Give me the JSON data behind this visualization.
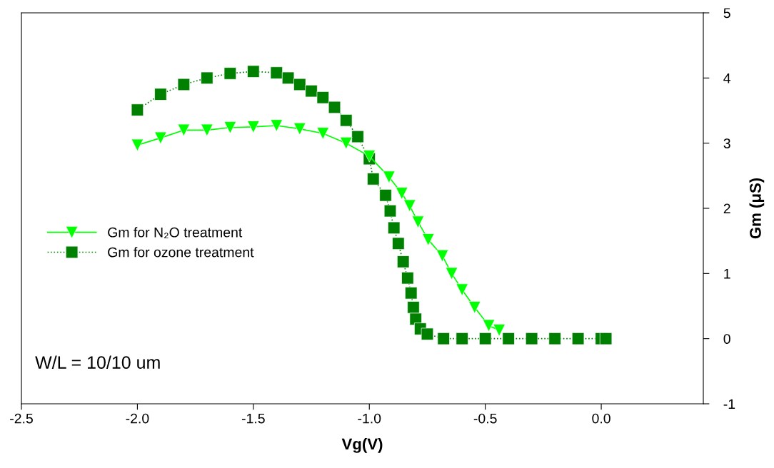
{
  "chart_data": {
    "type": "line",
    "xlabel": "Vg(V)",
    "ylabel": "Gm (μS)",
    "xlim": [
      -2.5,
      0.44
    ],
    "ylim": [
      -1,
      5
    ],
    "xticks": [
      {
        "value": -2.5,
        "label": "-2.5"
      },
      {
        "value": -2.0,
        "label": "-2.0"
      },
      {
        "value": -1.5,
        "label": "-1.5"
      },
      {
        "value": -1.0,
        "label": "-1.0"
      },
      {
        "value": -0.5,
        "label": "-0.5"
      },
      {
        "value": 0.0,
        "label": "0.0"
      }
    ],
    "yticks": [
      {
        "value": -1,
        "label": "-1"
      },
      0,
      1,
      2,
      3,
      4,
      5
    ],
    "grid": false,
    "legend": "left",
    "annotations": [
      "W/L = 10/10 um"
    ],
    "series": [
      {
        "name": "Gm for N₂O treatment",
        "color": "#00ff00",
        "marker": "triangle",
        "line_style": "solid",
        "x": [
          -2.0,
          -1.9,
          -1.8,
          -1.7,
          -1.6,
          -1.5,
          -1.4,
          -1.3,
          -1.2,
          -1.1,
          -1.0,
          -0.915,
          -0.86,
          -0.826,
          -0.79,
          -0.746,
          -0.685,
          -0.645,
          -0.6,
          -0.546,
          -0.485,
          -0.44
        ],
        "values": [
          2.97,
          3.08,
          3.2,
          3.2,
          3.24,
          3.25,
          3.27,
          3.22,
          3.15,
          3.0,
          2.8,
          2.48,
          2.23,
          2.04,
          1.79,
          1.52,
          1.27,
          1.0,
          0.75,
          0.48,
          0.2,
          0.13
        ]
      },
      {
        "name": "Gm for ozone treatment",
        "color": "#008000",
        "marker": "square",
        "line_style": "dotted",
        "x": [
          -2.0,
          -1.9,
          -1.8,
          -1.7,
          -1.6,
          -1.5,
          -1.4,
          -1.35,
          -1.3,
          -1.25,
          -1.2,
          -1.15,
          -1.1,
          -1.05,
          -1.0,
          -0.983,
          -0.93,
          -0.91,
          -0.894,
          -0.875,
          -0.854,
          -0.835,
          -0.82,
          -0.81,
          -0.8,
          -0.78,
          -0.75,
          -0.68,
          -0.6,
          -0.5,
          -0.4,
          -0.3,
          -0.2,
          -0.1,
          0.0,
          0.02
        ],
        "values": [
          3.51,
          3.75,
          3.9,
          4.0,
          4.07,
          4.1,
          4.08,
          4.0,
          3.9,
          3.8,
          3.7,
          3.55,
          3.35,
          3.1,
          2.76,
          2.45,
          2.2,
          1.96,
          1.7,
          1.46,
          1.18,
          0.93,
          0.7,
          0.48,
          0.3,
          0.15,
          0.07,
          0.0,
          0.0,
          0.0,
          0.0,
          0.0,
          0.0,
          0.0,
          0.0,
          0.0
        ]
      }
    ]
  }
}
